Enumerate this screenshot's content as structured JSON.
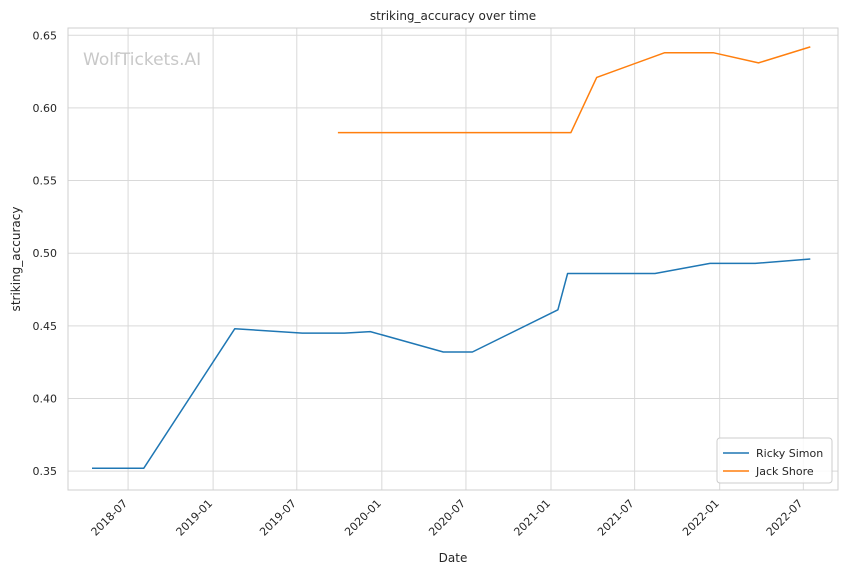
{
  "chart_data": {
    "type": "line",
    "title": "striking_accuracy over time",
    "xlabel": "Date",
    "ylabel": "striking_accuracy",
    "watermark": "WolfTickets.AI",
    "xlim": [
      "2018-02-21",
      "2022-09-14"
    ],
    "ylim": [
      0.337,
      0.655
    ],
    "x_ticks": [
      "2018-07",
      "2019-01",
      "2019-07",
      "2020-01",
      "2020-07",
      "2021-01",
      "2021-07",
      "2022-01",
      "2022-07"
    ],
    "y_ticks": [
      "0.35",
      "0.40",
      "0.45",
      "0.50",
      "0.55",
      "0.60",
      "0.65"
    ],
    "grid": true,
    "legend_position": "bottom-right",
    "series": [
      {
        "name": "Ricky Simon",
        "color": "#1f77b4",
        "points": [
          {
            "x": "2018-04-14",
            "y": 0.352
          },
          {
            "x": "2018-08-04",
            "y": 0.352
          },
          {
            "x": "2019-02-17",
            "y": 0.448
          },
          {
            "x": "2019-07-13",
            "y": 0.445
          },
          {
            "x": "2019-10-12",
            "y": 0.445
          },
          {
            "x": "2019-12-07",
            "y": 0.446
          },
          {
            "x": "2020-05-13",
            "y": 0.432
          },
          {
            "x": "2020-07-15",
            "y": 0.432
          },
          {
            "x": "2021-01-16",
            "y": 0.461
          },
          {
            "x": "2021-02-06",
            "y": 0.486
          },
          {
            "x": "2021-08-14",
            "y": 0.486
          },
          {
            "x": "2021-12-11",
            "y": 0.493
          },
          {
            "x": "2022-03-19",
            "y": 0.493
          },
          {
            "x": "2022-07-16",
            "y": 0.496
          }
        ]
      },
      {
        "name": "Jack Shore",
        "color": "#ff7f0e",
        "points": [
          {
            "x": "2019-09-28",
            "y": 0.583
          },
          {
            "x": "2021-02-13",
            "y": 0.583
          },
          {
            "x": "2021-04-10",
            "y": 0.621
          },
          {
            "x": "2021-09-04",
            "y": 0.638
          },
          {
            "x": "2021-12-18",
            "y": 0.638
          },
          {
            "x": "2022-03-26",
            "y": 0.631
          },
          {
            "x": "2022-07-16",
            "y": 0.642
          }
        ]
      }
    ]
  }
}
